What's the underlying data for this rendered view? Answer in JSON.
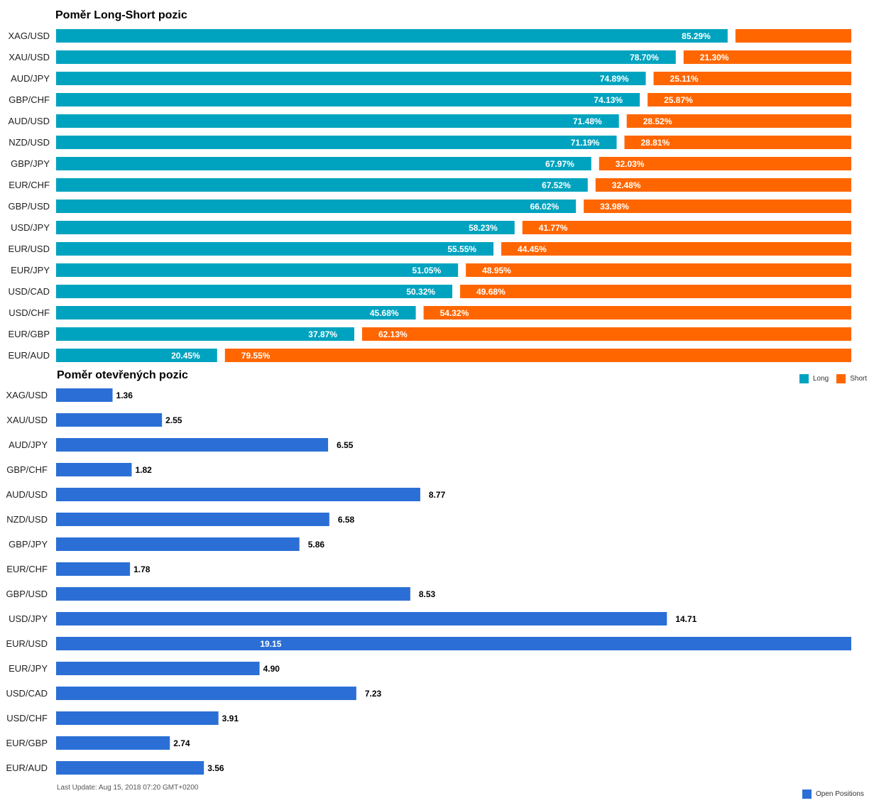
{
  "chart_data": [
    {
      "type": "bar",
      "title": "Poměr Long-Short pozic",
      "orientation": "horizontal",
      "stacked": true,
      "categories": [
        "XAG/USD",
        "XAU/USD",
        "AUD/JPY",
        "GBP/CHF",
        "AUD/USD",
        "NZD/USD",
        "GBP/JPY",
        "EUR/CHF",
        "GBP/USD",
        "USD/JPY",
        "EUR/USD",
        "EUR/JPY",
        "USD/CAD",
        "USD/CHF",
        "EUR/GBP",
        "EUR/AUD"
      ],
      "series": [
        {
          "name": "Long",
          "color": "#00A3BF",
          "values": [
            85.29,
            78.7,
            74.89,
            74.13,
            71.48,
            71.19,
            67.97,
            67.52,
            66.02,
            58.23,
            55.55,
            51.05,
            50.32,
            45.68,
            37.87,
            20.45
          ],
          "labels": [
            "85.29%",
            "78.70%",
            "74.89%",
            "74.13%",
            "71.48%",
            "71.19%",
            "67.97%",
            "67.52%",
            "66.02%",
            "58.23%",
            "55.55%",
            "51.05%",
            "50.32%",
            "45.68%",
            "37.87%",
            "20.45%"
          ]
        },
        {
          "name": "Short",
          "color": "#FF6600",
          "values": [
            14.71,
            21.3,
            25.11,
            25.87,
            28.52,
            28.81,
            32.03,
            32.48,
            33.98,
            41.77,
            44.45,
            48.95,
            49.68,
            54.32,
            62.13,
            79.55
          ],
          "labels": [
            "",
            "21.30%",
            "25.11%",
            "25.87%",
            "28.52%",
            "28.81%",
            "32.03%",
            "32.48%",
            "33.98%",
            "41.77%",
            "44.45%",
            "48.95%",
            "49.68%",
            "54.32%",
            "62.13%",
            "79.55%"
          ]
        }
      ],
      "xlim": [
        0,
        100
      ],
      "legend": "bottom-right"
    },
    {
      "type": "bar",
      "title": "Poměr otevřených pozic",
      "orientation": "horizontal",
      "categories": [
        "XAG/USD",
        "XAU/USD",
        "AUD/JPY",
        "GBP/CHF",
        "AUD/USD",
        "NZD/USD",
        "GBP/JPY",
        "EUR/CHF",
        "GBP/USD",
        "USD/JPY",
        "EUR/USD",
        "EUR/JPY",
        "USD/CAD",
        "USD/CHF",
        "EUR/GBP",
        "EUR/AUD"
      ],
      "series": [
        {
          "name": "Open Positions",
          "color": "#2B6FD6",
          "values": [
            1.36,
            2.55,
            6.55,
            1.82,
            8.77,
            6.58,
            5.86,
            1.78,
            8.53,
            14.71,
            19.15,
            4.9,
            7.23,
            3.91,
            2.74,
            3.56
          ],
          "labels": [
            "1.36",
            "2.55",
            "6.55",
            "1.82",
            "8.77",
            "6.58",
            "5.86",
            "1.78",
            "8.53",
            "14.71",
            "19.15",
            "4.90",
            "7.23",
            "3.91",
            "2.74",
            "3.56"
          ]
        }
      ],
      "xlim": [
        0,
        19.15
      ],
      "legend": "bottom-right"
    }
  ],
  "footer": {
    "last_update": "Last Update: Aug 15, 2018 07:20 GMT+0200"
  },
  "legends": {
    "long": "Long",
    "short": "Short",
    "open": "Open Positions"
  }
}
